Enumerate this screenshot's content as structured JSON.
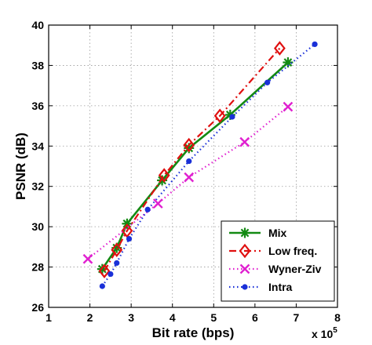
{
  "chart_data": {
    "type": "line",
    "xlabel": "Bit rate (bps)",
    "ylabel": "PSNR (dB)",
    "x_multiplier_label": "x 10",
    "x_multiplier_exponent": "5",
    "xlim": [
      1,
      8
    ],
    "ylim": [
      26,
      40
    ],
    "xticks": [
      "1",
      "2",
      "3",
      "4",
      "5",
      "6",
      "7",
      "8"
    ],
    "yticks": [
      "26",
      "28",
      "30",
      "32",
      "34",
      "36",
      "38",
      "40"
    ],
    "grid": true,
    "legend_position": "bottom-right",
    "series": [
      {
        "name": "Mix",
        "color": "#138a13",
        "line": "solid",
        "marker": "asterisk",
        "points": [
          [
            2.3,
            27.9
          ],
          [
            2.65,
            28.95
          ],
          [
            2.9,
            30.15
          ],
          [
            3.75,
            32.3
          ],
          [
            4.4,
            33.9
          ],
          [
            5.4,
            35.55
          ],
          [
            6.8,
            38.15
          ]
        ]
      },
      {
        "name": "Low freq.",
        "color": "#e01010",
        "line": "dashdot",
        "marker": "diamond",
        "points": [
          [
            2.35,
            27.8
          ],
          [
            2.65,
            28.85
          ],
          [
            2.9,
            29.8
          ],
          [
            3.8,
            32.55
          ],
          [
            4.4,
            34.05
          ],
          [
            5.15,
            35.5
          ],
          [
            6.6,
            38.85
          ]
        ]
      },
      {
        "name": "Wyner-Ziv",
        "color": "#e020d0",
        "line": "dotted",
        "marker": "x",
        "points": [
          [
            1.95,
            28.4
          ],
          [
            3.65,
            31.15
          ],
          [
            4.4,
            32.45
          ],
          [
            5.75,
            34.2
          ],
          [
            6.8,
            35.95
          ]
        ]
      },
      {
        "name": "Intra",
        "color": "#1a30d8",
        "line": "dotted",
        "marker": "dot",
        "points": [
          [
            2.3,
            27.05
          ],
          [
            2.5,
            27.65
          ],
          [
            2.65,
            28.2
          ],
          [
            2.95,
            29.4
          ],
          [
            3.4,
            30.85
          ],
          [
            4.4,
            33.25
          ],
          [
            5.45,
            35.45
          ],
          [
            6.3,
            37.15
          ],
          [
            7.45,
            39.05
          ]
        ]
      }
    ]
  }
}
